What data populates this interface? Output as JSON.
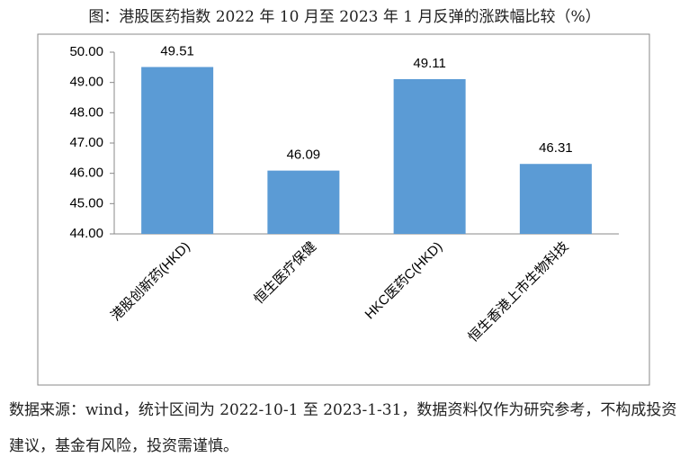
{
  "chart_data": {
    "type": "bar",
    "title": "图：港股医药指数 2022 年 10 月至 2023 年 1 月反弹的涨跌幅比较（%）",
    "categories": [
      "港股创新药(HKD)",
      "恒生医疗保健",
      "HKC医药C(HKD)",
      "恒生香港上市生物科技"
    ],
    "values": [
      49.51,
      46.09,
      49.11,
      46.31
    ],
    "color": "#5b9bd5",
    "ylim": [
      44,
      50
    ],
    "yticks": [
      {
        "value": 44,
        "label": "44.00"
      },
      {
        "value": 45,
        "label": "45.00"
      },
      {
        "value": 46,
        "label": "46.00"
      },
      {
        "value": 47,
        "label": "47.00"
      },
      {
        "value": 48,
        "label": "48.00"
      },
      {
        "value": 49,
        "label": "49.00"
      },
      {
        "value": 50,
        "label": "50.00"
      }
    ],
    "grid": false,
    "source": "数据来源：wind，统计区间为 2022-10-1 至 2023-1-31，数据资料仅作为研究参考，不构成投资建议，基金有风险，投资需谨慎。"
  }
}
